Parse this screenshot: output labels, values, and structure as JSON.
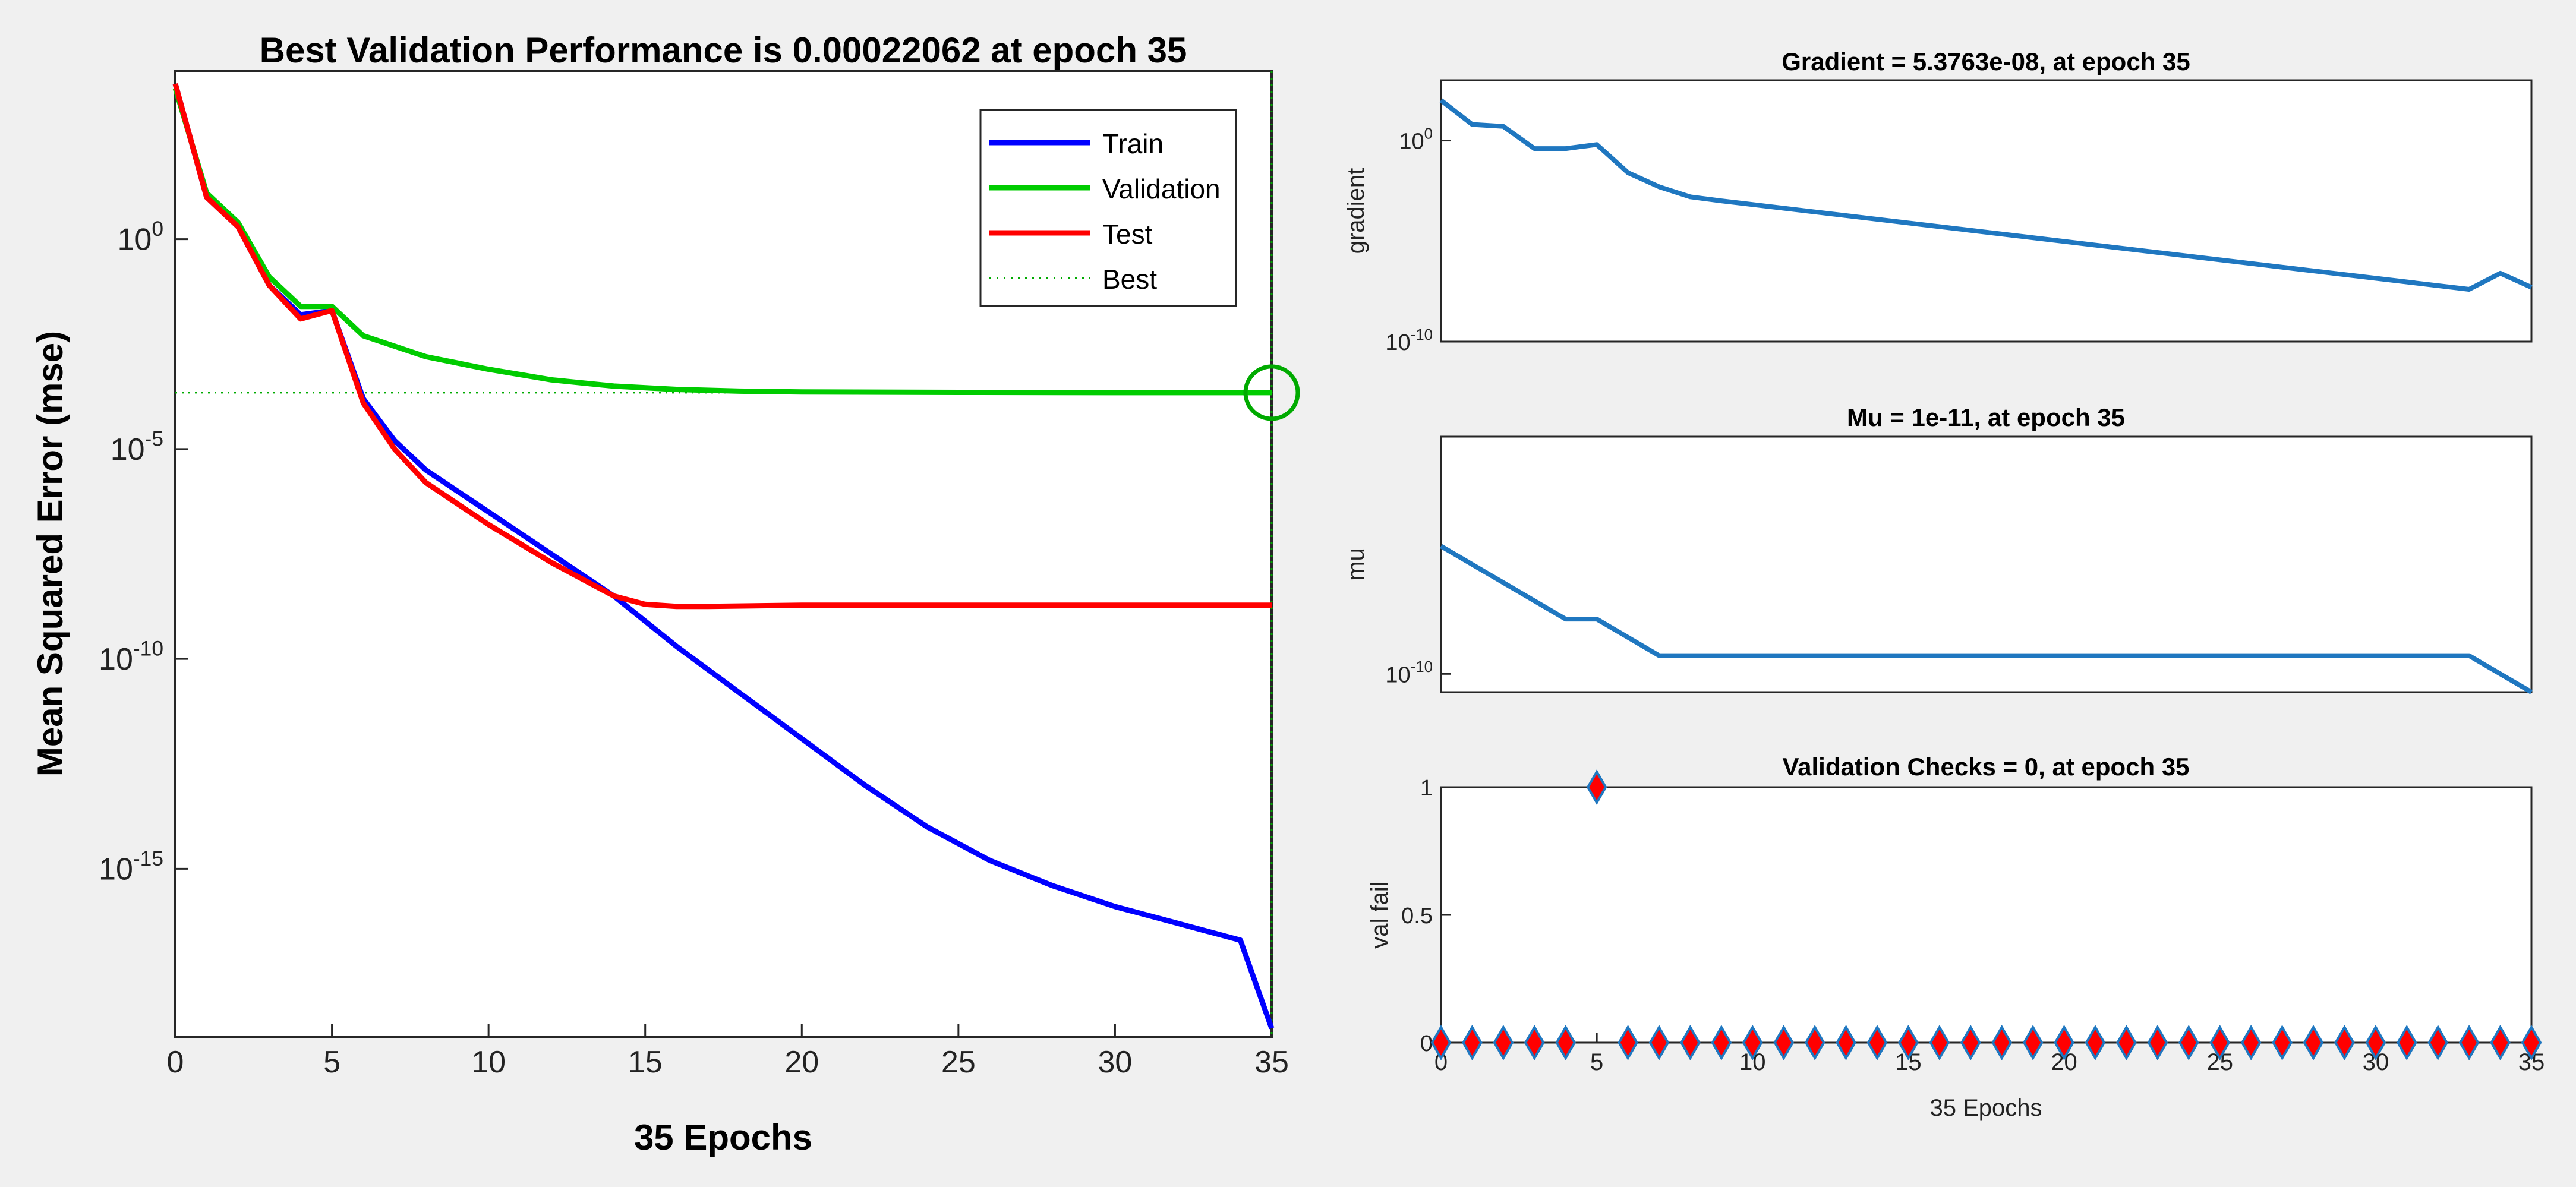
{
  "figure_title": "",
  "colors": {
    "background": "#f0f0f0",
    "axes_bg": "#ffffff",
    "train": "#0000ff",
    "validation": "#00cc00",
    "test": "#ff0000",
    "best": "#00aa00",
    "small_line": "#1f77c0",
    "marker_fill": "#ff0000",
    "marker_edge": "#1f77c0"
  },
  "chart_data": [
    {
      "type": "line",
      "title": "Best Validation Performance is 0.00022062 at epoch 35",
      "xlabel": "35 Epochs",
      "ylabel": "Mean Squared Error  (mse)",
      "xlim": [
        0,
        35
      ],
      "ylim_exponent": [
        -19,
        4
      ],
      "yscale": "log",
      "grid": false,
      "legend_position": "top-right",
      "xticks": [
        0,
        5,
        10,
        15,
        20,
        25,
        30,
        35
      ],
      "xtick_labels": [
        "0",
        "5",
        "10",
        "15",
        "20",
        "25",
        "30",
        "35"
      ],
      "yticks_exponent": [
        0,
        -5,
        -10,
        -15
      ],
      "ytick_labels": [
        {
          "base": "10",
          "exp": "0"
        },
        {
          "base": "10",
          "exp": "-5"
        },
        {
          "base": "10",
          "exp": "-10"
        },
        {
          "base": "10",
          "exp": "-15"
        }
      ],
      "series": [
        {
          "name": "Train",
          "color_key": "train",
          "style": "solid",
          "x": [
            0,
            1,
            2,
            3,
            4,
            5,
            6,
            7,
            8,
            10,
            12,
            14,
            16,
            18,
            20,
            22,
            24,
            26,
            28,
            30,
            32,
            34,
            35
          ],
          "y_exponent": [
            3.7,
            1.0,
            0.3,
            -1.1,
            -1.8,
            -1.7,
            -3.8,
            -4.8,
            -5.5,
            -6.5,
            -7.5,
            -8.5,
            -9.7,
            -10.8,
            -11.9,
            -13.0,
            -14.0,
            -14.8,
            -15.4,
            -15.9,
            -16.3,
            -16.7,
            -18.8
          ]
        },
        {
          "name": "Validation",
          "color_key": "validation",
          "style": "solid",
          "x": [
            0,
            1,
            2,
            3,
            4,
            5,
            6,
            8,
            10,
            12,
            14,
            16,
            18,
            20,
            25,
            30,
            35
          ],
          "y_exponent": [
            3.6,
            1.1,
            0.4,
            -0.9,
            -1.6,
            -1.6,
            -2.3,
            -2.8,
            -3.1,
            -3.35,
            -3.5,
            -3.58,
            -3.62,
            -3.64,
            -3.65,
            -3.656,
            -3.656
          ]
        },
        {
          "name": "Test",
          "color_key": "test",
          "style": "solid",
          "x": [
            0,
            1,
            2,
            3,
            4,
            5,
            6,
            7,
            8,
            10,
            12,
            14,
            15,
            16,
            17,
            20,
            25,
            30,
            35
          ],
          "y_exponent": [
            3.7,
            1.0,
            0.3,
            -1.1,
            -1.9,
            -1.7,
            -3.9,
            -5.0,
            -5.8,
            -6.8,
            -7.7,
            -8.5,
            -8.7,
            -8.75,
            -8.75,
            -8.72,
            -8.72,
            -8.72,
            -8.72
          ]
        }
      ],
      "best": {
        "name": "Best",
        "epoch": 35,
        "value": 0.00022062,
        "y_exponent": -3.656
      }
    },
    {
      "type": "line",
      "title": "Gradient = 5.3763e-08, at epoch 35",
      "ylabel": "gradient",
      "xlim": [
        0,
        35
      ],
      "yscale": "log",
      "ylim_exponent": [
        -10,
        3
      ],
      "yticks_exponent": [
        0,
        -10
      ],
      "ytick_labels": [
        {
          "base": "10",
          "exp": "0"
        },
        {
          "base": "10",
          "exp": "-10"
        }
      ],
      "x": [
        0,
        1,
        2,
        3,
        4,
        5,
        6,
        7,
        8,
        9,
        33,
        34,
        35
      ],
      "y_exponent": [
        2.0,
        0.8,
        0.7,
        -0.4,
        -0.4,
        -0.2,
        -1.6,
        -2.3,
        -2.8,
        -3.0,
        -7.4,
        -6.6,
        -7.3
      ]
    },
    {
      "type": "line",
      "title": "Mu = 1e-11, at epoch 35",
      "ylabel": "mu",
      "xlim": [
        0,
        35
      ],
      "yscale": "log",
      "ylim_exponent": [
        -11,
        3
      ],
      "yticks_exponent": [
        -10
      ],
      "ytick_labels": [
        {
          "base": "10",
          "exp": "-10"
        }
      ],
      "x": [
        0,
        4,
        5,
        7,
        33,
        35
      ],
      "y_exponent": [
        -3,
        -7,
        -7,
        -9,
        -9,
        -11
      ]
    },
    {
      "type": "scatter",
      "title": "Validation Checks = 0, at epoch 35",
      "xlabel": "35 Epochs",
      "ylabel": "val fail",
      "xlim": [
        0,
        35
      ],
      "ylim": [
        0,
        1
      ],
      "xticks": [
        0,
        5,
        10,
        15,
        20,
        25,
        30,
        35
      ],
      "xtick_labels": [
        "0",
        "5",
        "10",
        "15",
        "20",
        "25",
        "30",
        "35"
      ],
      "yticks": [
        0,
        0.5,
        1
      ],
      "ytick_labels": [
        "0",
        "0.5",
        "1"
      ],
      "x": [
        0,
        1,
        2,
        3,
        4,
        5,
        6,
        7,
        8,
        9,
        10,
        11,
        12,
        13,
        14,
        15,
        16,
        17,
        18,
        19,
        20,
        21,
        22,
        23,
        24,
        25,
        26,
        27,
        28,
        29,
        30,
        31,
        32,
        33,
        34,
        35
      ],
      "y": [
        0,
        0,
        0,
        0,
        0,
        1,
        0,
        0,
        0,
        0,
        0,
        0,
        0,
        0,
        0,
        0,
        0,
        0,
        0,
        0,
        0,
        0,
        0,
        0,
        0,
        0,
        0,
        0,
        0,
        0,
        0,
        0,
        0,
        0,
        0,
        0
      ]
    }
  ]
}
